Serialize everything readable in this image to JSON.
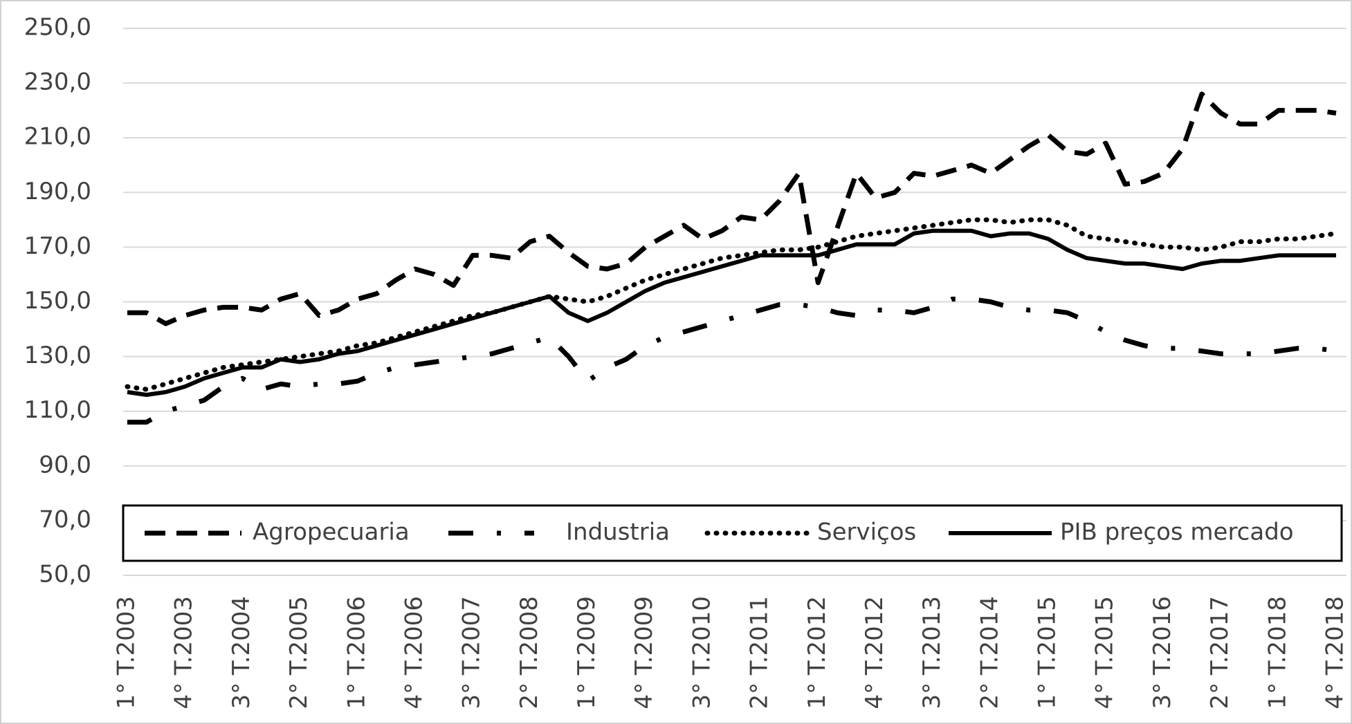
{
  "chart_data": {
    "type": "line",
    "categories": [
      "1° T.2003",
      null,
      null,
      "4° T.2003",
      null,
      null,
      "3° T.2004",
      null,
      null,
      "2° T.2005",
      null,
      null,
      "1° T.2006",
      null,
      null,
      "4° T.2006",
      null,
      null,
      "3° T.2007",
      null,
      null,
      "2° T.2008",
      null,
      null,
      "1° T.2009",
      null,
      null,
      "4° T.2009",
      null,
      null,
      "3° T.2010",
      null,
      null,
      "2° T.2011",
      null,
      null,
      "1° T.2012",
      null,
      null,
      "4° T.2012",
      null,
      null,
      "3° T.2013",
      null,
      null,
      "2° T.2014",
      null,
      null,
      "1° T.2015",
      null,
      null,
      "4° T.2015",
      null,
      null,
      "3° T.2016",
      null,
      null,
      "2° T.2017",
      null,
      null,
      "1° T.2018",
      null,
      null,
      "4° T.2018"
    ],
    "series": [
      {
        "name": "Agropecuaria",
        "color": "#000000",
        "dash": "dashed",
        "values": [
          146,
          146,
          142,
          145,
          147,
          148,
          148,
          147,
          151,
          153,
          145,
          147,
          151,
          153,
          158,
          162,
          160,
          156,
          167,
          167,
          166,
          172,
          174,
          168,
          163,
          162,
          164,
          170,
          174,
          178,
          173,
          176,
          181,
          180,
          187,
          197,
          157,
          177,
          197,
          188,
          190,
          197,
          196,
          198,
          200,
          197,
          202,
          207,
          211,
          205,
          204,
          208,
          193,
          194,
          197,
          206,
          226,
          219,
          215,
          215,
          220,
          220,
          220,
          219
        ]
      },
      {
        "name": "Industria",
        "color": "#000000",
        "dash": "dashdot",
        "values": [
          106,
          106,
          110,
          112,
          114,
          119,
          122,
          118,
          120,
          119,
          120,
          120,
          121,
          124,
          126,
          127,
          128,
          129,
          130,
          131,
          133,
          135,
          137,
          130,
          121,
          126,
          129,
          134,
          137,
          139,
          141,
          143,
          145,
          147,
          149,
          149,
          148,
          146,
          145,
          147,
          147,
          146,
          148,
          151,
          151,
          150,
          148,
          147,
          147,
          146,
          143,
          139,
          136,
          134,
          133,
          133,
          132,
          131,
          131,
          131,
          132,
          133,
          133,
          132
        ]
      },
      {
        "name": "Serviços",
        "color": "#000000",
        "dash": "dotted",
        "values": [
          119,
          118,
          120,
          122,
          124,
          126,
          127,
          128,
          129,
          130,
          131,
          132,
          134,
          135,
          137,
          139,
          141,
          143,
          145,
          146,
          148,
          150,
          152,
          151,
          150,
          152,
          155,
          158,
          160,
          162,
          164,
          166,
          167,
          168,
          169,
          169,
          170,
          172,
          174,
          175,
          176,
          177,
          178,
          179,
          180,
          180,
          179,
          180,
          180,
          178,
          174,
          173,
          172,
          171,
          170,
          170,
          169,
          170,
          172,
          172,
          173,
          173,
          174,
          175
        ]
      },
      {
        "name": "PIB preços mercado",
        "color": "#000000",
        "dash": "solid",
        "values": [
          117,
          116,
          117,
          119,
          122,
          124,
          126,
          126,
          129,
          128,
          129,
          131,
          132,
          134,
          136,
          138,
          140,
          142,
          144,
          146,
          148,
          150,
          152,
          146,
          143,
          146,
          150,
          154,
          157,
          159,
          161,
          163,
          165,
          167,
          167,
          167,
          167,
          169,
          171,
          171,
          171,
          175,
          176,
          176,
          176,
          174,
          175,
          175,
          173,
          169,
          166,
          165,
          164,
          164,
          163,
          162,
          164,
          165,
          165,
          166,
          167,
          167,
          167,
          167
        ]
      }
    ],
    "ylim": [
      50,
      250
    ],
    "yticks": [
      {
        "value": 50,
        "label": "50,0"
      },
      {
        "value": 70,
        "label": "70,0"
      },
      {
        "value": 90,
        "label": "90,0"
      },
      {
        "value": 110,
        "label": "110,0"
      },
      {
        "value": 130,
        "label": "130,0"
      },
      {
        "value": 150,
        "label": "150,0"
      },
      {
        "value": 170,
        "label": "170,0"
      },
      {
        "value": 190,
        "label": "190,0"
      },
      {
        "value": 210,
        "label": "210,0"
      },
      {
        "value": 230,
        "label": "230,0"
      },
      {
        "value": 250,
        "label": "250,0"
      }
    ],
    "grid": true,
    "legend": "bottom"
  }
}
